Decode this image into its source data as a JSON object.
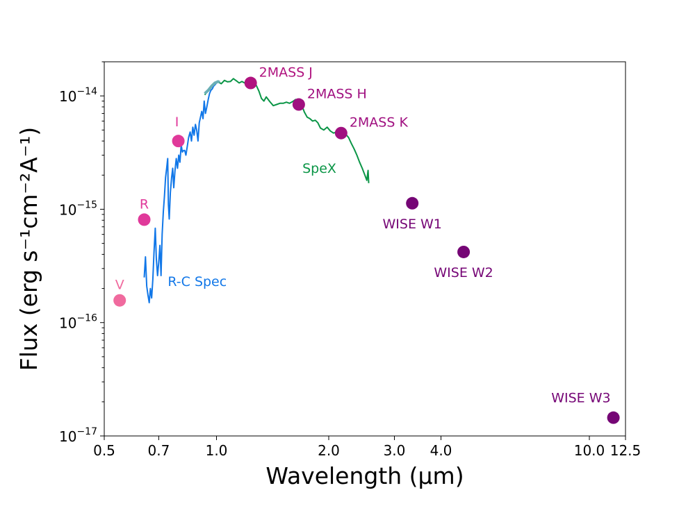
{
  "chart_data": {
    "type": "scatter",
    "title": "",
    "xlabel": "Wavelength (μm)",
    "ylabel": "Flux  (erg s⁻¹cm⁻²A⁻¹)",
    "xscale": "log",
    "yscale": "log",
    "xlim": [
      0.5,
      12.5
    ],
    "ylim": [
      1e-17,
      2e-14
    ],
    "grid": false,
    "legend": "none",
    "x_ticks": [
      {
        "value": 0.5,
        "label": "0.5"
      },
      {
        "value": 0.7,
        "label": "0.7"
      },
      {
        "value": 1.0,
        "label": "1.0"
      },
      {
        "value": 2.0,
        "label": "2.0"
      },
      {
        "value": 3.0,
        "label": "3.0"
      },
      {
        "value": 4.0,
        "label": "4.0"
      },
      {
        "value": 10.0,
        "label": "10.0"
      },
      {
        "value": 12.5,
        "label": "12.5"
      }
    ],
    "y_ticks": [
      {
        "value": 1e-14,
        "base": "10",
        "exp": "−14"
      },
      {
        "value": 1e-15,
        "base": "10",
        "exp": "−15"
      },
      {
        "value": 1e-16,
        "base": "10",
        "exp": "−16"
      },
      {
        "value": 1e-17,
        "base": "10",
        "exp": "−17"
      }
    ],
    "photometry": [
      {
        "label": "V",
        "x": 0.55,
        "y": 1.57e-16,
        "color": "#f06a9e",
        "label_pos": "above"
      },
      {
        "label": "R",
        "x": 0.64,
        "y": 8.1e-16,
        "color": "#e0399a",
        "label_pos": "above"
      },
      {
        "label": "I",
        "x": 0.79,
        "y": 4e-15,
        "color": "#e0399a",
        "label_pos": "above-left"
      },
      {
        "label": "2MASS J",
        "x": 1.235,
        "y": 1.3e-14,
        "color": "#b0137f",
        "label_pos": "above-right"
      },
      {
        "label": "2MASS H",
        "x": 1.662,
        "y": 8.4e-15,
        "color": "#a01080",
        "label_pos": "above-right"
      },
      {
        "label": "2MASS K",
        "x": 2.159,
        "y": 4.7e-15,
        "color": "#a01080",
        "label_pos": "above-right"
      },
      {
        "label": "WISE W1",
        "x": 3.35,
        "y": 1.13e-15,
        "color": "#750575",
        "label_pos": "below"
      },
      {
        "label": "WISE W2",
        "x": 4.6,
        "y": 4.2e-16,
        "color": "#750575",
        "label_pos": "below"
      },
      {
        "label": "WISE W3",
        "x": 11.6,
        "y": 1.45e-17,
        "color": "#750575",
        "label_pos": "above-left"
      }
    ],
    "spectra": [
      {
        "label": "R-C Spec",
        "color": "#1177e8",
        "label_at": {
          "x": 0.74,
          "y": 2.1e-16
        },
        "points": [
          [
            0.64,
            2.5e-16
          ],
          [
            0.645,
            3.8e-16
          ],
          [
            0.65,
            2.1e-16
          ],
          [
            0.655,
            1.75e-16
          ],
          [
            0.66,
            1.5e-16
          ],
          [
            0.665,
            2e-16
          ],
          [
            0.67,
            1.65e-16
          ],
          [
            0.675,
            2.4e-16
          ],
          [
            0.68,
            4.2e-16
          ],
          [
            0.685,
            6.8e-16
          ],
          [
            0.69,
            3.6e-16
          ],
          [
            0.695,
            2.6e-16
          ],
          [
            0.7,
            3.4e-16
          ],
          [
            0.705,
            4.8e-16
          ],
          [
            0.71,
            2.6e-16
          ],
          [
            0.715,
            6e-16
          ],
          [
            0.72,
            9.5e-16
          ],
          [
            0.725,
            1.3e-15
          ],
          [
            0.73,
            1.9e-15
          ],
          [
            0.735,
            2.3e-15
          ],
          [
            0.74,
            2.8e-15
          ],
          [
            0.743,
            1.1e-15
          ],
          [
            0.747,
            8.2e-16
          ],
          [
            0.752,
            1.4e-15
          ],
          [
            0.758,
            1.9e-15
          ],
          [
            0.763,
            2.3e-15
          ],
          [
            0.768,
            1.55e-15
          ],
          [
            0.774,
            2.2e-15
          ],
          [
            0.78,
            2.8e-15
          ],
          [
            0.786,
            2.3e-15
          ],
          [
            0.792,
            3e-15
          ],
          [
            0.798,
            2.6e-15
          ],
          [
            0.804,
            3.7e-15
          ],
          [
            0.81,
            3.2e-15
          ],
          [
            0.816,
            3.3e-15
          ],
          [
            0.822,
            3.3e-15
          ],
          [
            0.828,
            3e-15
          ],
          [
            0.835,
            3.6e-15
          ],
          [
            0.842,
            4.3e-15
          ],
          [
            0.85,
            4.8e-15
          ],
          [
            0.857,
            4e-15
          ],
          [
            0.864,
            5.3e-15
          ],
          [
            0.871,
            4.5e-15
          ],
          [
            0.878,
            5.6e-15
          ],
          [
            0.885,
            5e-15
          ],
          [
            0.892,
            4e-15
          ],
          [
            0.899,
            5.8e-15
          ],
          [
            0.906,
            6.5e-15
          ],
          [
            0.913,
            7.3e-15
          ],
          [
            0.92,
            6.3e-15
          ],
          [
            0.927,
            9e-15
          ],
          [
            0.934,
            7e-15
          ],
          [
            0.942,
            8e-15
          ],
          [
            0.95,
            9.3e-15
          ],
          [
            0.958,
            1.05e-14
          ],
          [
            0.966,
            1.12e-14
          ],
          [
            0.974,
            1.15e-14
          ],
          [
            0.982,
            1.22e-14
          ],
          [
            0.99,
            1.25e-14
          ],
          [
            1.0,
            1.3e-14
          ]
        ]
      },
      {
        "label": "SpeX",
        "color": "#0a9546",
        "label_at": {
          "x": 1.7,
          "y": 2.1e-15
        },
        "points": [
          [
            0.93,
            1.02e-14
          ],
          [
            0.95,
            1.12e-14
          ],
          [
            0.97,
            1.22e-14
          ],
          [
            0.99,
            1.3e-14
          ],
          [
            1.01,
            1.33e-14
          ],
          [
            1.03,
            1.28e-14
          ],
          [
            1.05,
            1.37e-14
          ],
          [
            1.07,
            1.33e-14
          ],
          [
            1.09,
            1.34e-14
          ],
          [
            1.11,
            1.42e-14
          ],
          [
            1.13,
            1.36e-14
          ],
          [
            1.15,
            1.3e-14
          ],
          [
            1.17,
            1.34e-14
          ],
          [
            1.19,
            1.3e-14
          ],
          [
            1.21,
            1.33e-14
          ],
          [
            1.235,
            1.3e-14
          ],
          [
            1.26,
            1.34e-14
          ],
          [
            1.28,
            1.23e-14
          ],
          [
            1.3,
            1.1e-14
          ],
          [
            1.32,
            9.5e-15
          ],
          [
            1.34,
            9e-15
          ],
          [
            1.36,
            9.8e-15
          ],
          [
            1.39,
            8.9e-15
          ],
          [
            1.42,
            8.2e-15
          ],
          [
            1.45,
            8.4e-15
          ],
          [
            1.48,
            8.6e-15
          ],
          [
            1.51,
            8.6e-15
          ],
          [
            1.54,
            8.8e-15
          ],
          [
            1.57,
            8.6e-15
          ],
          [
            1.6,
            8.9e-15
          ],
          [
            1.63,
            9.3e-15
          ],
          [
            1.662,
            9.1e-15
          ],
          [
            1.69,
            8.4e-15
          ],
          [
            1.72,
            7.2e-15
          ],
          [
            1.75,
            6.5e-15
          ],
          [
            1.78,
            6.3e-15
          ],
          [
            1.81,
            6e-15
          ],
          [
            1.84,
            6.1e-15
          ],
          [
            1.87,
            5.8e-15
          ],
          [
            1.9,
            5.2e-15
          ],
          [
            1.94,
            5e-15
          ],
          [
            1.98,
            5.3e-15
          ],
          [
            2.02,
            4.9e-15
          ],
          [
            2.06,
            4.7e-15
          ],
          [
            2.1,
            4.8e-15
          ],
          [
            2.14,
            4.7e-15
          ],
          [
            2.18,
            4.7e-15
          ],
          [
            2.22,
            4.6e-15
          ],
          [
            2.26,
            4.3e-15
          ],
          [
            2.3,
            3.8e-15
          ],
          [
            2.34,
            3.4e-15
          ],
          [
            2.38,
            3e-15
          ],
          [
            2.42,
            2.6e-15
          ],
          [
            2.46,
            2.3e-15
          ],
          [
            2.5,
            2e-15
          ],
          [
            2.53,
            1.8e-15
          ],
          [
            2.55,
            2.2e-15
          ],
          [
            2.56,
            1.7e-15
          ]
        ]
      },
      {
        "label": "",
        "color": "#6aafb5",
        "points": [
          [
            0.93,
            1.05e-14
          ],
          [
            0.95,
            1.12e-14
          ],
          [
            0.97,
            1.22e-14
          ],
          [
            0.99,
            1.3e-14
          ],
          [
            1.01,
            1.34e-14
          ],
          [
            1.02,
            1.32e-14
          ]
        ]
      }
    ]
  }
}
